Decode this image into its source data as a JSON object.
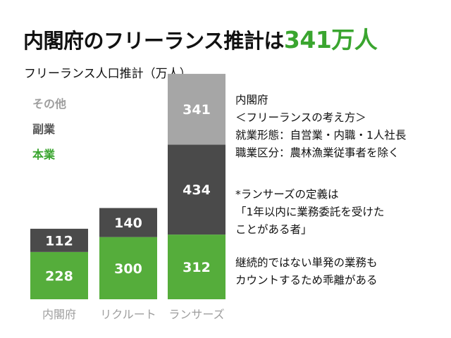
{
  "title": {
    "main": "内閣府のフリーランス推計は",
    "highlight": "341万人"
  },
  "subtitle": "フリーランス人口推計（万人）",
  "legend": [
    {
      "label": "その他",
      "color": "#9e9e9e"
    },
    {
      "label": "副業",
      "color": "#555555"
    },
    {
      "label": "本業",
      "color": "#3aa52f"
    }
  ],
  "chart_data": {
    "type": "bar",
    "stacked": true,
    "categories": [
      "内閣府",
      "リクルート",
      "ランサーズ"
    ],
    "series": [
      {
        "name": "本業",
        "color": "#55ad3b",
        "values": [
          228,
          300,
          312
        ]
      },
      {
        "name": "副業",
        "color": "#4a4a4a",
        "values": [
          112,
          140,
          434
        ]
      },
      {
        "name": "その他",
        "color": "#a6a6a6",
        "values": [
          0,
          0,
          341
        ]
      }
    ],
    "title": "フリーランス人口推計（万人）",
    "ylabel": "",
    "grid": false,
    "legend_position": "left"
  },
  "notes": {
    "block1": [
      "内閣府",
      "＜フリーランスの考え方＞",
      "就業形態：自営業・内職・1人社長",
      "職業区分：農林漁業従事者を除く"
    ],
    "block2": [
      "*ランサーズの定義は",
      "「1年以内に業務委託を受けた",
      "ことがある者」"
    ],
    "block3": [
      "継続的ではない単発の業務も",
      "カウントするため乖離がある"
    ]
  }
}
